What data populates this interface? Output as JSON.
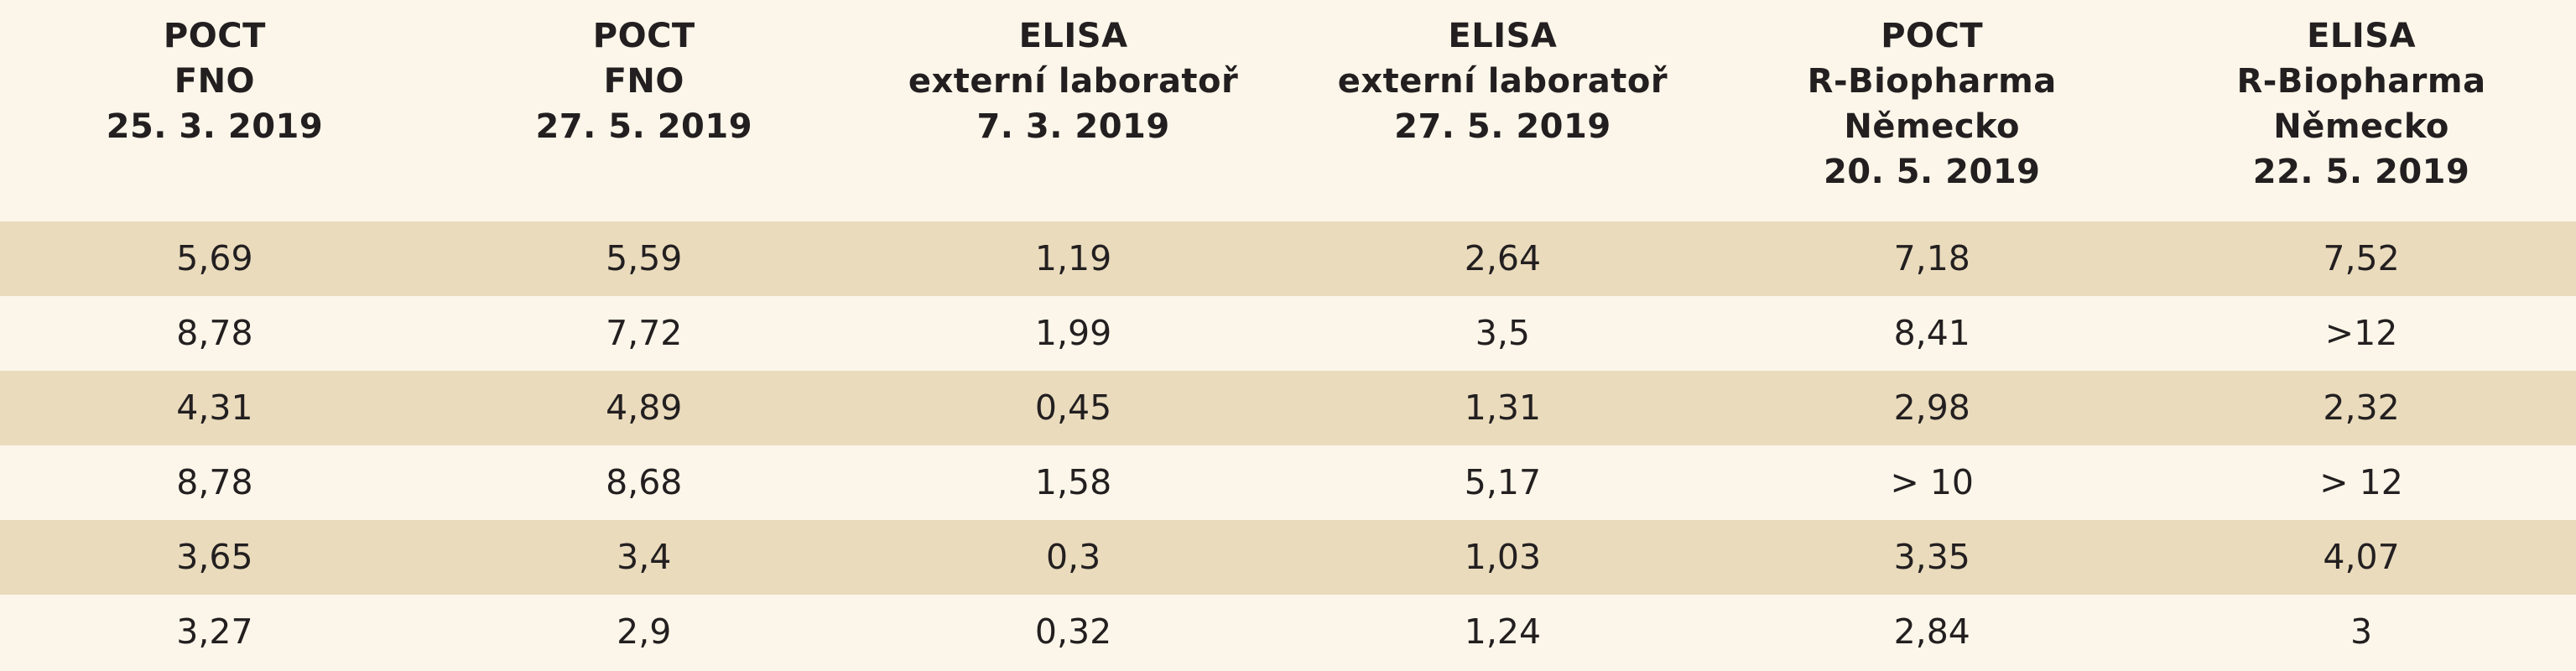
{
  "columns": [
    {
      "lines": [
        "POCT",
        "FNO",
        "25. 3. 2019"
      ]
    },
    {
      "lines": [
        "POCT",
        "FNO",
        "27. 5. 2019"
      ]
    },
    {
      "lines": [
        "ELISA",
        "externí laboratoř",
        "7. 3. 2019"
      ]
    },
    {
      "lines": [
        "ELISA",
        "externí laboratoř",
        "27. 5. 2019"
      ]
    },
    {
      "lines": [
        "POCT",
        "R-Biopharma",
        "Německo",
        "20. 5. 2019"
      ]
    },
    {
      "lines": [
        "ELISA",
        "R-Biopharma",
        "Německo",
        "22. 5. 2019"
      ]
    }
  ],
  "rows": [
    [
      "5,69",
      "5,59",
      "1,19",
      "2,64",
      "7,18",
      "7,52"
    ],
    [
      "8,78",
      "7,72",
      "1,99",
      "3,5",
      "8,41",
      ">12"
    ],
    [
      "4,31",
      "4,89",
      "0,45",
      "1,31",
      "2,98",
      "2,32"
    ],
    [
      "8,78",
      "8,68",
      "1,58",
      "5,17",
      "> 10",
      "> 12"
    ],
    [
      "3,65",
      "3,4",
      "0,3",
      "1,03",
      "3,35",
      "4,07"
    ],
    [
      "3,27",
      "2,9",
      "0,32",
      "1,24",
      "2,84",
      "3"
    ]
  ]
}
